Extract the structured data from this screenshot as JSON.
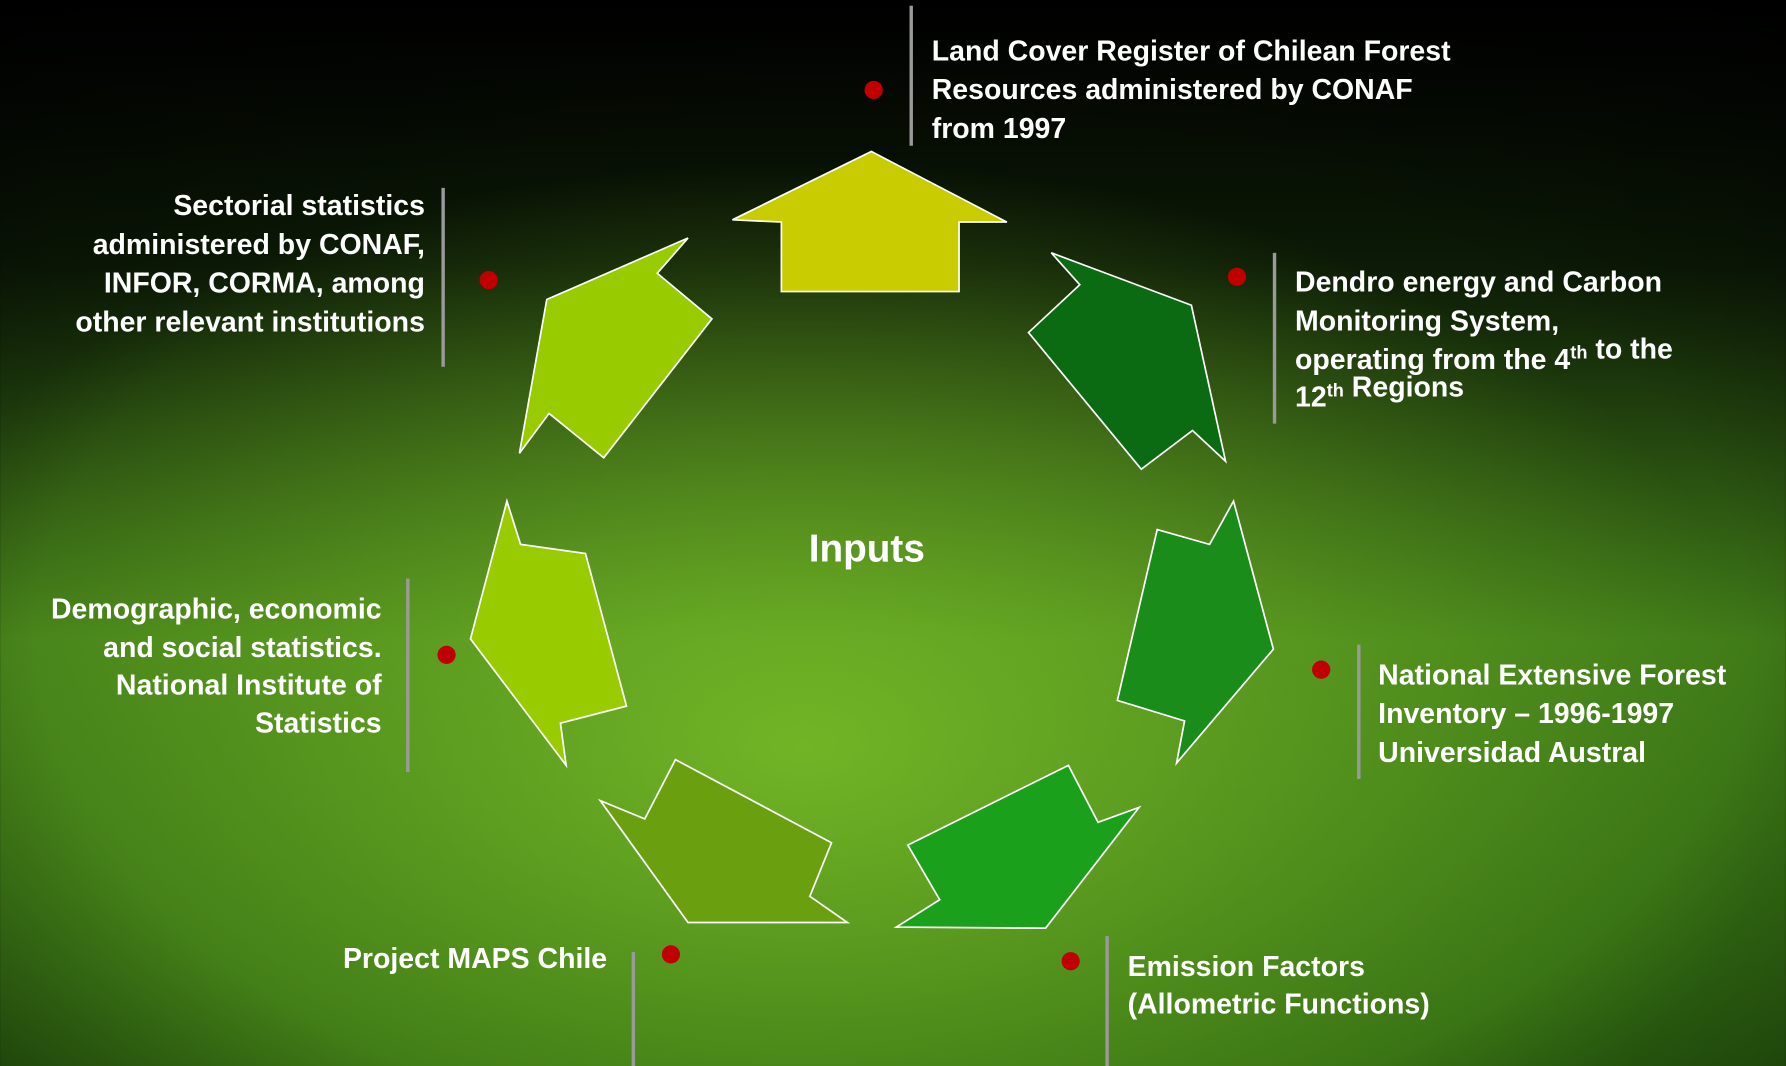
{
  "center": {
    "label": "Inputs"
  },
  "nodes": [
    {
      "lines": [
        [
          "Land Cover Register of Chilean Forest"
        ],
        [
          "Resources administered by CONAF"
        ],
        [
          "from 1997"
        ]
      ]
    },
    {
      "lines": [
        [
          "Dendro energy and Carbon"
        ],
        [
          "Monitoring System,"
        ],
        [
          "operating from the 4",
          {
            "sup": "th"
          },
          " to the"
        ],
        [
          "12",
          {
            "sup": "th"
          },
          " Regions"
        ]
      ]
    },
    {
      "lines": [
        [
          "National Extensive Forest"
        ],
        [
          "Inventory – 1996-1997"
        ],
        [
          "Universidad Austral"
        ]
      ]
    },
    {
      "lines": [
        [
          "Emission Factors"
        ],
        [
          "(Allometric Functions)"
        ]
      ]
    },
    {
      "lines": [
        [
          "Project MAPS Chile"
        ]
      ]
    },
    {
      "lines": [
        [
          "Demographic, economic"
        ],
        [
          "and social statistics."
        ],
        [
          "National Institute of"
        ],
        [
          "Statistics"
        ]
      ]
    },
    {
      "lines": [
        [
          "Sectorial statistics"
        ],
        [
          "administered by CONAF,"
        ],
        [
          "INFOR, CORMA, among"
        ],
        [
          "other relevant institutions"
        ]
      ]
    }
  ]
}
